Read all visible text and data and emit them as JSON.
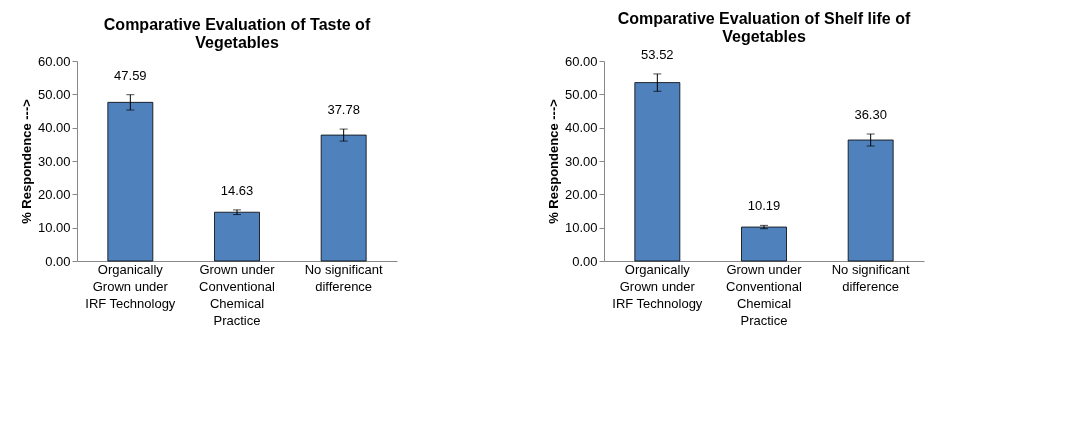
{
  "chart_data": [
    {
      "type": "bar",
      "title": "Comparative Evaluation of  Taste of Vegetables",
      "ylabel": "% Respondence --->",
      "categories": [
        "Organically Grown under IRF Technology",
        "Grown under Conventional Chemical Practice",
        "No significant difference"
      ],
      "values": [
        47.59,
        14.63,
        37.78
      ],
      "errors": [
        2.3,
        0.7,
        1.8
      ],
      "color": "#4f81bd",
      "data_labels": true,
      "grid": false,
      "ylim": [
        0,
        60
      ],
      "yticks": [
        {
          "value": 0,
          "label": "0.00"
        },
        {
          "value": 10,
          "label": "10.00"
        },
        {
          "value": 20,
          "label": "20.00"
        },
        {
          "value": 30,
          "label": "30.00"
        },
        {
          "value": 40,
          "label": "40.00"
        },
        {
          "value": 50,
          "label": "50.00"
        },
        {
          "value": 60,
          "label": "60.00"
        }
      ]
    },
    {
      "type": "bar",
      "title": "Comparative Evaluation of  Shelf life of Vegetables",
      "ylabel": "% Respondence --->",
      "categories": [
        "Organically Grown under IRF Technology",
        "Grown under Conventional Chemical Practice",
        "No significant difference"
      ],
      "values": [
        53.52,
        10.19,
        36.3
      ],
      "errors": [
        2.6,
        0.5,
        1.8
      ],
      "color": "#4f81bd",
      "value_labels": [
        "53.52",
        "10.19",
        "36.30"
      ],
      "grid": false,
      "ylim": [
        0,
        60
      ],
      "yticks": [
        {
          "value": 0,
          "label": "0.00"
        },
        {
          "value": 10,
          "label": "10.00"
        },
        {
          "value": 20,
          "label": "20.00"
        },
        {
          "value": 30,
          "label": "30.00"
        },
        {
          "value": 40,
          "label": "40.00"
        },
        {
          "value": 50,
          "label": "50.00"
        },
        {
          "value": 60,
          "label": "60.00"
        }
      ]
    }
  ]
}
